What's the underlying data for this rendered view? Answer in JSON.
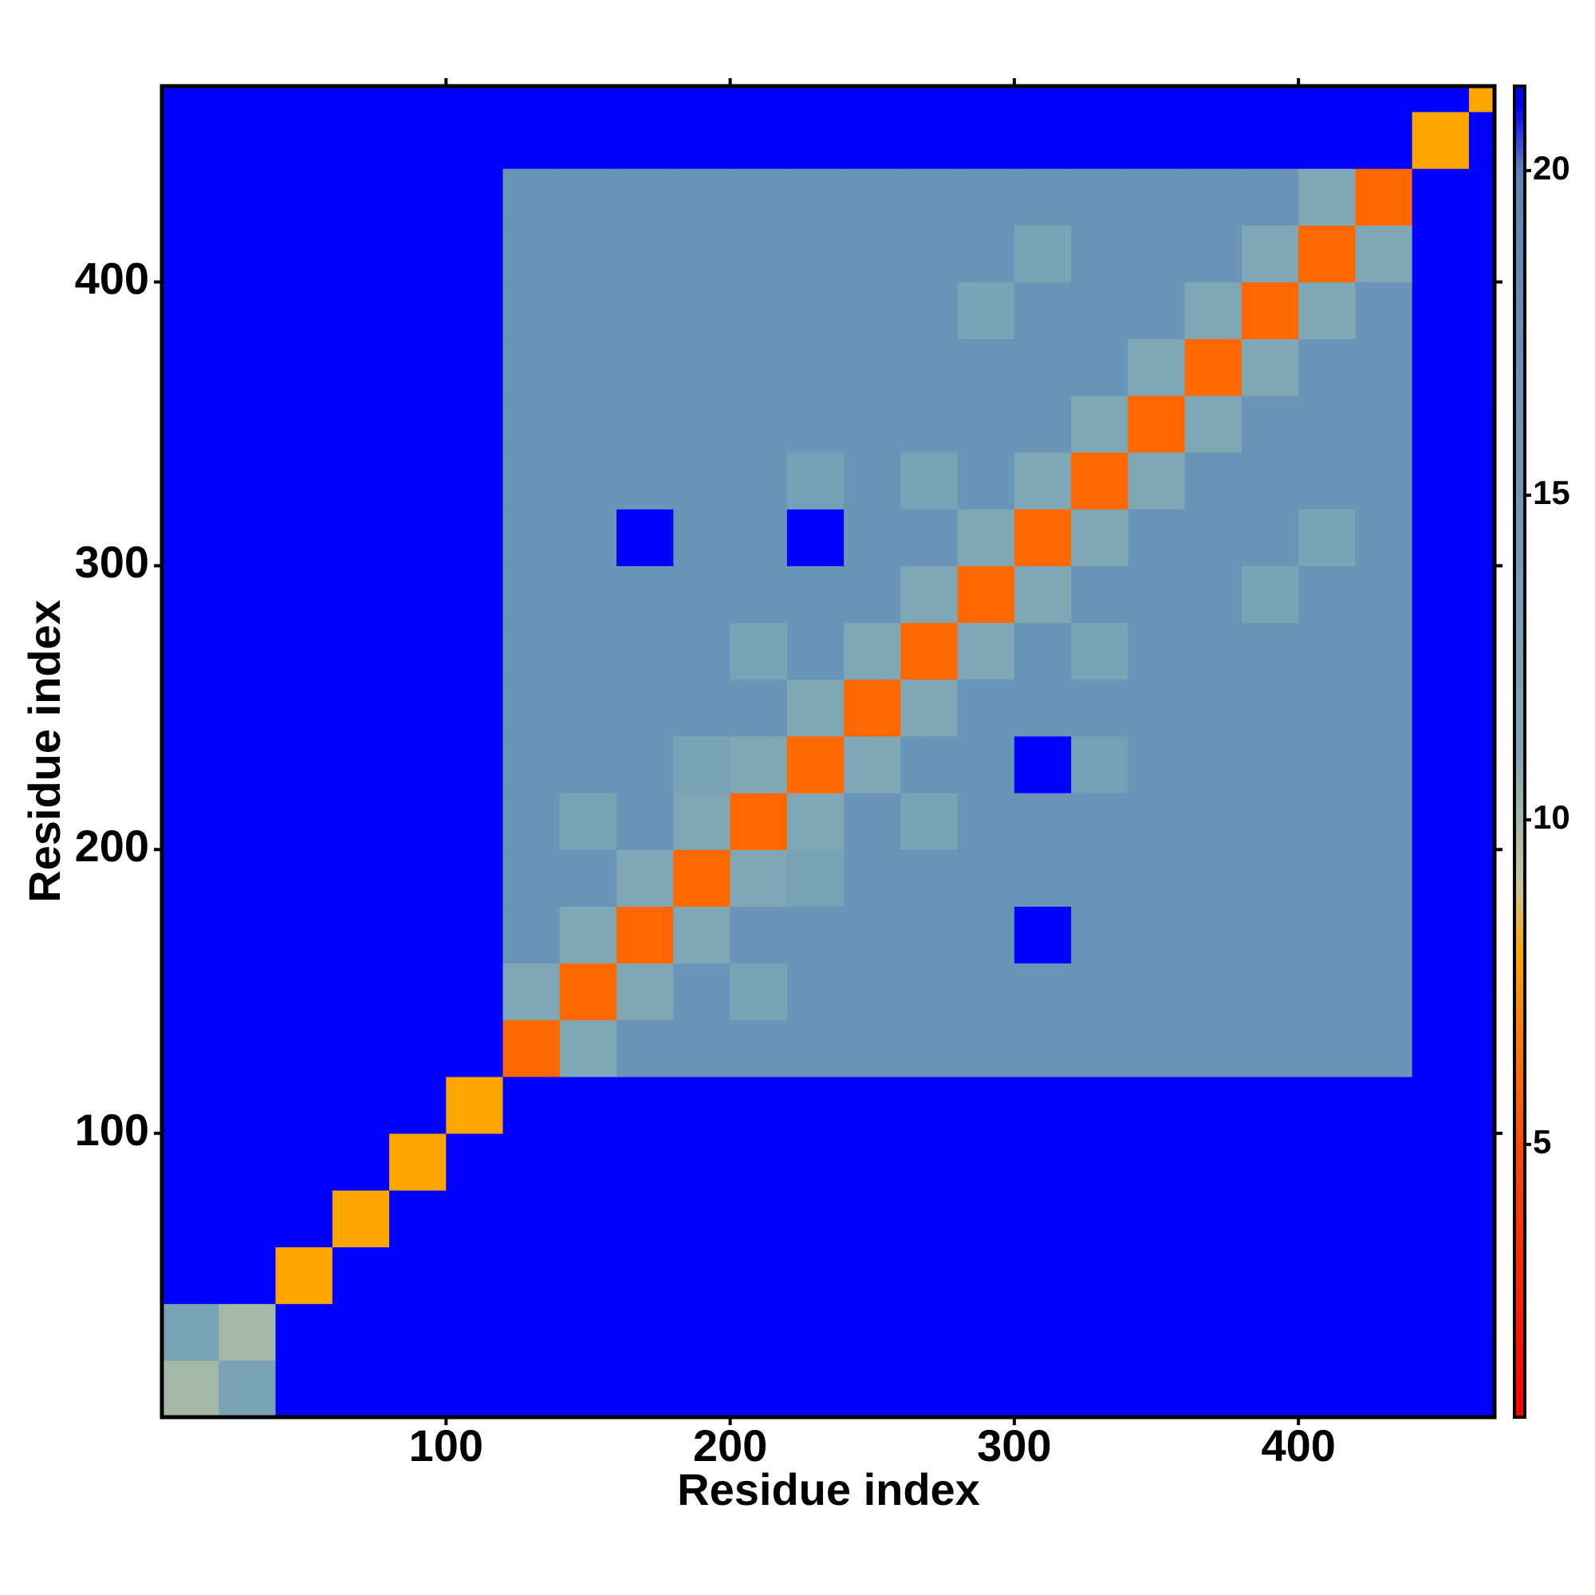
{
  "chart_data": {
    "type": "heatmap",
    "x_label": "Residue index",
    "y_label": "Residue index",
    "xlim": [
      0,
      469
    ],
    "ylim": [
      0,
      469
    ],
    "xticks": [
      100,
      200,
      300,
      400
    ],
    "yticks": [
      100,
      200,
      300,
      400
    ],
    "x_edges": [
      0,
      20,
      40,
      60,
      80,
      100,
      120,
      140,
      160,
      180,
      200,
      220,
      240,
      260,
      280,
      300,
      320,
      340,
      360,
      380,
      400,
      420,
      440,
      460,
      469
    ],
    "y_edges": [
      0,
      20,
      40,
      60,
      80,
      100,
      120,
      140,
      160,
      180,
      200,
      220,
      240,
      260,
      280,
      300,
      320,
      340,
      360,
      380,
      400,
      420,
      440,
      460,
      469
    ],
    "clim": [
      0.8,
      21.3
    ],
    "cticks": [
      5,
      10,
      15,
      20
    ],
    "colorscale": [
      [
        0.8,
        "#ff0000"
      ],
      [
        5,
        "#ff4a00"
      ],
      [
        8,
        "#ffa500"
      ],
      [
        9,
        "#c8c896"
      ],
      [
        11,
        "#7fa7b6"
      ],
      [
        20,
        "#5b86b6"
      ],
      [
        21,
        "#0000ff"
      ]
    ],
    "z": [
      [
        10,
        12,
        21.3,
        21.3,
        21.3,
        21.3,
        21.3,
        21.3,
        21.3,
        21.3,
        21.3,
        21.3,
        21.3,
        21.3,
        21.3,
        21.3,
        21.3,
        21.3,
        21.3,
        21.3,
        21.3,
        21.3,
        21.3,
        21.3
      ],
      [
        12,
        10,
        21.3,
        21.3,
        21.3,
        21.3,
        21.3,
        21.3,
        21.3,
        21.3,
        21.3,
        21.3,
        21.3,
        21.3,
        21.3,
        21.3,
        21.3,
        21.3,
        21.3,
        21.3,
        21.3,
        21.3,
        21.3,
        21.3
      ],
      [
        21.3,
        21.3,
        8,
        21.3,
        21.3,
        21.3,
        21.3,
        21.3,
        21.3,
        21.3,
        21.3,
        21.3,
        21.3,
        21.3,
        21.3,
        21.3,
        21.3,
        21.3,
        21.3,
        21.3,
        21.3,
        21.3,
        21.3,
        21.3
      ],
      [
        21.3,
        21.3,
        21.3,
        8,
        21.3,
        21.3,
        21.3,
        21.3,
        21.3,
        21.3,
        21.3,
        21.3,
        21.3,
        21.3,
        21.3,
        21.3,
        21.3,
        21.3,
        21.3,
        21.3,
        21.3,
        21.3,
        21.3,
        21.3
      ],
      [
        21.3,
        21.3,
        21.3,
        21.3,
        8,
        21.3,
        21.3,
        21.3,
        21.3,
        21.3,
        21.3,
        21.3,
        21.3,
        21.3,
        21.3,
        21.3,
        21.3,
        21.3,
        21.3,
        21.3,
        21.3,
        21.3,
        21.3,
        21.3
      ],
      [
        21.3,
        21.3,
        21.3,
        21.3,
        21.3,
        8,
        21.3,
        21.3,
        21.3,
        21.3,
        21.3,
        21.3,
        21.3,
        21.3,
        21.3,
        21.3,
        21.3,
        21.3,
        21.3,
        21.3,
        21.3,
        21.3,
        21.3,
        21.3
      ],
      [
        21.3,
        21.3,
        21.3,
        21.3,
        21.3,
        21.3,
        6,
        11,
        16,
        16,
        16,
        16,
        16,
        16,
        16,
        16,
        16,
        16,
        16,
        16,
        16,
        16,
        21.3,
        21.3
      ],
      [
        21.3,
        21.3,
        21.3,
        21.3,
        21.3,
        21.3,
        11,
        6,
        11,
        16,
        12,
        16,
        16,
        16,
        16,
        16,
        16,
        16,
        16,
        16,
        16,
        16,
        21.3,
        21.3
      ],
      [
        21.3,
        21.3,
        21.3,
        21.3,
        21.3,
        21.3,
        16,
        11,
        6,
        11,
        16,
        16,
        16,
        16,
        16,
        21.3,
        16,
        16,
        16,
        16,
        16,
        16,
        21.3,
        21.3
      ],
      [
        21.3,
        21.3,
        21.3,
        21.3,
        21.3,
        21.3,
        16,
        16,
        11,
        6,
        11,
        12,
        16,
        16,
        16,
        16,
        16,
        16,
        16,
        16,
        16,
        16,
        21.3,
        21.3
      ],
      [
        21.3,
        21.3,
        21.3,
        21.3,
        21.3,
        21.3,
        16,
        12,
        16,
        11,
        6,
        11,
        16,
        12,
        16,
        16,
        16,
        16,
        16,
        16,
        16,
        16,
        21.3,
        21.3
      ],
      [
        21.3,
        21.3,
        21.3,
        21.3,
        21.3,
        21.3,
        16,
        16,
        16,
        12,
        11,
        6,
        11,
        16,
        16,
        21.3,
        13,
        16,
        16,
        16,
        16,
        16,
        21.3,
        21.3
      ],
      [
        21.3,
        21.3,
        21.3,
        21.3,
        21.3,
        21.3,
        16,
        16,
        16,
        16,
        16,
        11,
        6,
        11,
        16,
        16,
        16,
        16,
        16,
        16,
        16,
        16,
        21.3,
        21.3
      ],
      [
        21.3,
        21.3,
        21.3,
        21.3,
        21.3,
        21.3,
        16,
        16,
        16,
        16,
        12,
        16,
        11,
        6,
        11,
        16,
        12,
        16,
        16,
        16,
        16,
        16,
        21.3,
        21.3
      ],
      [
        21.3,
        21.3,
        21.3,
        21.3,
        21.3,
        21.3,
        16,
        16,
        16,
        16,
        16,
        16,
        16,
        11,
        6,
        11,
        16,
        16,
        16,
        12,
        16,
        16,
        21.3,
        21.3
      ],
      [
        21.3,
        21.3,
        21.3,
        21.3,
        21.3,
        21.3,
        16,
        16,
        21.3,
        16,
        16,
        21.3,
        16,
        16,
        11,
        6,
        11,
        16,
        16,
        16,
        12,
        16,
        21.3,
        21.3
      ],
      [
        21.3,
        21.3,
        21.3,
        21.3,
        21.3,
        21.3,
        16,
        16,
        16,
        16,
        16,
        13,
        16,
        12,
        16,
        11,
        6,
        11,
        16,
        16,
        16,
        16,
        21.3,
        21.3
      ],
      [
        21.3,
        21.3,
        21.3,
        21.3,
        21.3,
        21.3,
        16,
        16,
        16,
        16,
        16,
        16,
        16,
        16,
        16,
        16,
        11,
        6,
        11,
        16,
        16,
        16,
        21.3,
        21.3
      ],
      [
        21.3,
        21.3,
        21.3,
        21.3,
        21.3,
        21.3,
        16,
        16,
        16,
        16,
        16,
        16,
        16,
        16,
        16,
        16,
        16,
        11,
        6,
        11,
        16,
        16,
        21.3,
        21.3
      ],
      [
        21.3,
        21.3,
        21.3,
        21.3,
        21.3,
        21.3,
        16,
        16,
        16,
        16,
        16,
        16,
        16,
        16,
        12,
        16,
        16,
        16,
        11,
        6,
        11,
        16,
        21.3,
        21.3
      ],
      [
        21.3,
        21.3,
        21.3,
        21.3,
        21.3,
        21.3,
        16,
        16,
        16,
        16,
        16,
        16,
        16,
        16,
        16,
        12,
        16,
        16,
        16,
        11,
        6,
        11,
        21.3,
        21.3
      ],
      [
        21.3,
        21.3,
        21.3,
        21.3,
        21.3,
        21.3,
        16,
        16,
        16,
        16,
        16,
        16,
        16,
        16,
        16,
        16,
        16,
        16,
        16,
        16,
        11,
        6,
        21.3,
        21.3
      ],
      [
        21.3,
        21.3,
        21.3,
        21.3,
        21.3,
        21.3,
        21.3,
        21.3,
        21.3,
        21.3,
        21.3,
        21.3,
        21.3,
        21.3,
        21.3,
        21.3,
        21.3,
        21.3,
        21.3,
        21.3,
        21.3,
        21.3,
        8,
        21.3
      ],
      [
        21.3,
        21.3,
        21.3,
        21.3,
        21.3,
        21.3,
        21.3,
        21.3,
        21.3,
        21.3,
        21.3,
        21.3,
        21.3,
        21.3,
        21.3,
        21.3,
        21.3,
        21.3,
        21.3,
        21.3,
        21.3,
        21.3,
        21.3,
        8
      ]
    ]
  }
}
